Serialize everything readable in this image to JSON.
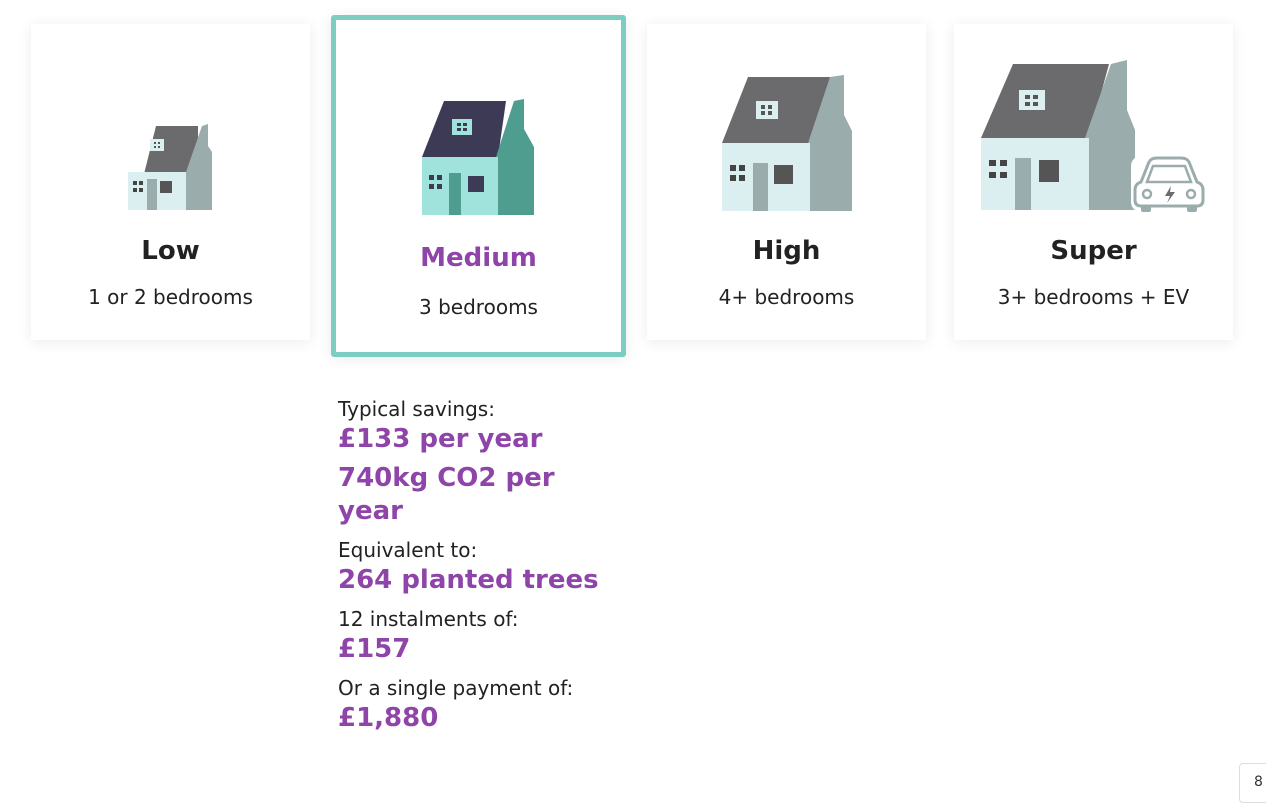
{
  "tiers": [
    {
      "key": "low",
      "label": "Low",
      "desc": "1 or 2 bedrooms",
      "icon": "small-house-icon"
    },
    {
      "key": "medium",
      "label": "Medium",
      "desc": "3 bedrooms",
      "icon": "medium-house-icon",
      "selected": true
    },
    {
      "key": "high",
      "label": "High",
      "desc": "4+ bedrooms",
      "icon": "large-house-icon"
    },
    {
      "key": "super",
      "label": "Super",
      "desc": "3+ bedrooms + EV",
      "icon": "house-with-ev-icon"
    }
  ],
  "details": {
    "savings_label": "Typical savings:",
    "savings_money": "£133 per year",
    "savings_co2": "740kg CO2 per year",
    "equivalent_label": "Equivalent to:",
    "equivalent_value": "264 planted trees",
    "instalments_label": "12 instalments of:",
    "instalments_value": "£157",
    "single_label": "Or a single payment of:",
    "single_value": "£1,880"
  },
  "corner_widget": "8",
  "colors": {
    "accent_purple": "#8e44a8",
    "selected_border": "#7ccfc0",
    "roof_grey": "#6b6a6c",
    "wall_light": "#dceff0",
    "side_grey": "#9aacab",
    "roof_dark": "#3c3a55",
    "wall_teal": "#9fe3dc",
    "side_teal": "#4e9d8f"
  }
}
